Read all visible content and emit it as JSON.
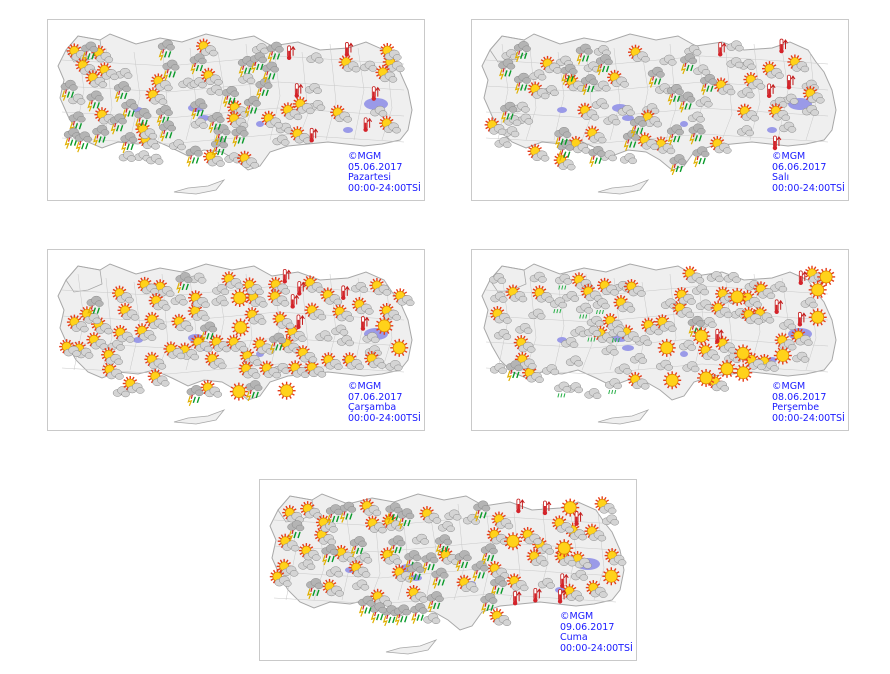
{
  "maps": [
    {
      "copyright": "©MGM",
      "date": "05.06.2017",
      "day": "Pazartesi",
      "time": "00:00-24:00TSİ",
      "icons": {
        "storm": 30,
        "cloud": 20,
        "partly_sunny": 26,
        "hot": 6,
        "sun": 0,
        "rain": 0
      }
    },
    {
      "copyright": "©MGM",
      "date": "06.06.2017",
      "day": "Salı",
      "time": "00:00-24:00TSİ",
      "icons": {
        "storm": 22,
        "cloud": 34,
        "partly_sunny": 22,
        "hot": 5,
        "sun": 0,
        "rain": 0
      }
    },
    {
      "copyright": "©MGM",
      "date": "07.06.2017",
      "day": "Çarşamba",
      "time": "00:00-24:00TSİ",
      "icons": {
        "storm": 6,
        "cloud": 14,
        "partly_sunny": 56,
        "hot": 6,
        "sun": 6,
        "rain": 0
      }
    },
    {
      "copyright": "©MGM",
      "date": "08.06.2017",
      "day": "Perşembe",
      "time": "00:00-24:00TSİ",
      "icons": {
        "storm": 2,
        "cloud": 36,
        "partly_sunny": 34,
        "hot": 4,
        "sun": 12,
        "rain": 8
      }
    },
    {
      "copyright": "©MGM",
      "date": "09.06.2017",
      "day": "Cuma",
      "time": "00:00-24:00TSİ",
      "icons": {
        "storm": 26,
        "cloud": 12,
        "partly_sunny": 38,
        "hot": 7,
        "sun": 4,
        "rain": 0
      }
    }
  ],
  "colors": {
    "land": "#efefef",
    "border": "#a8a8a8",
    "lake": "#9a9ae8",
    "caption": "#1a1aff"
  }
}
